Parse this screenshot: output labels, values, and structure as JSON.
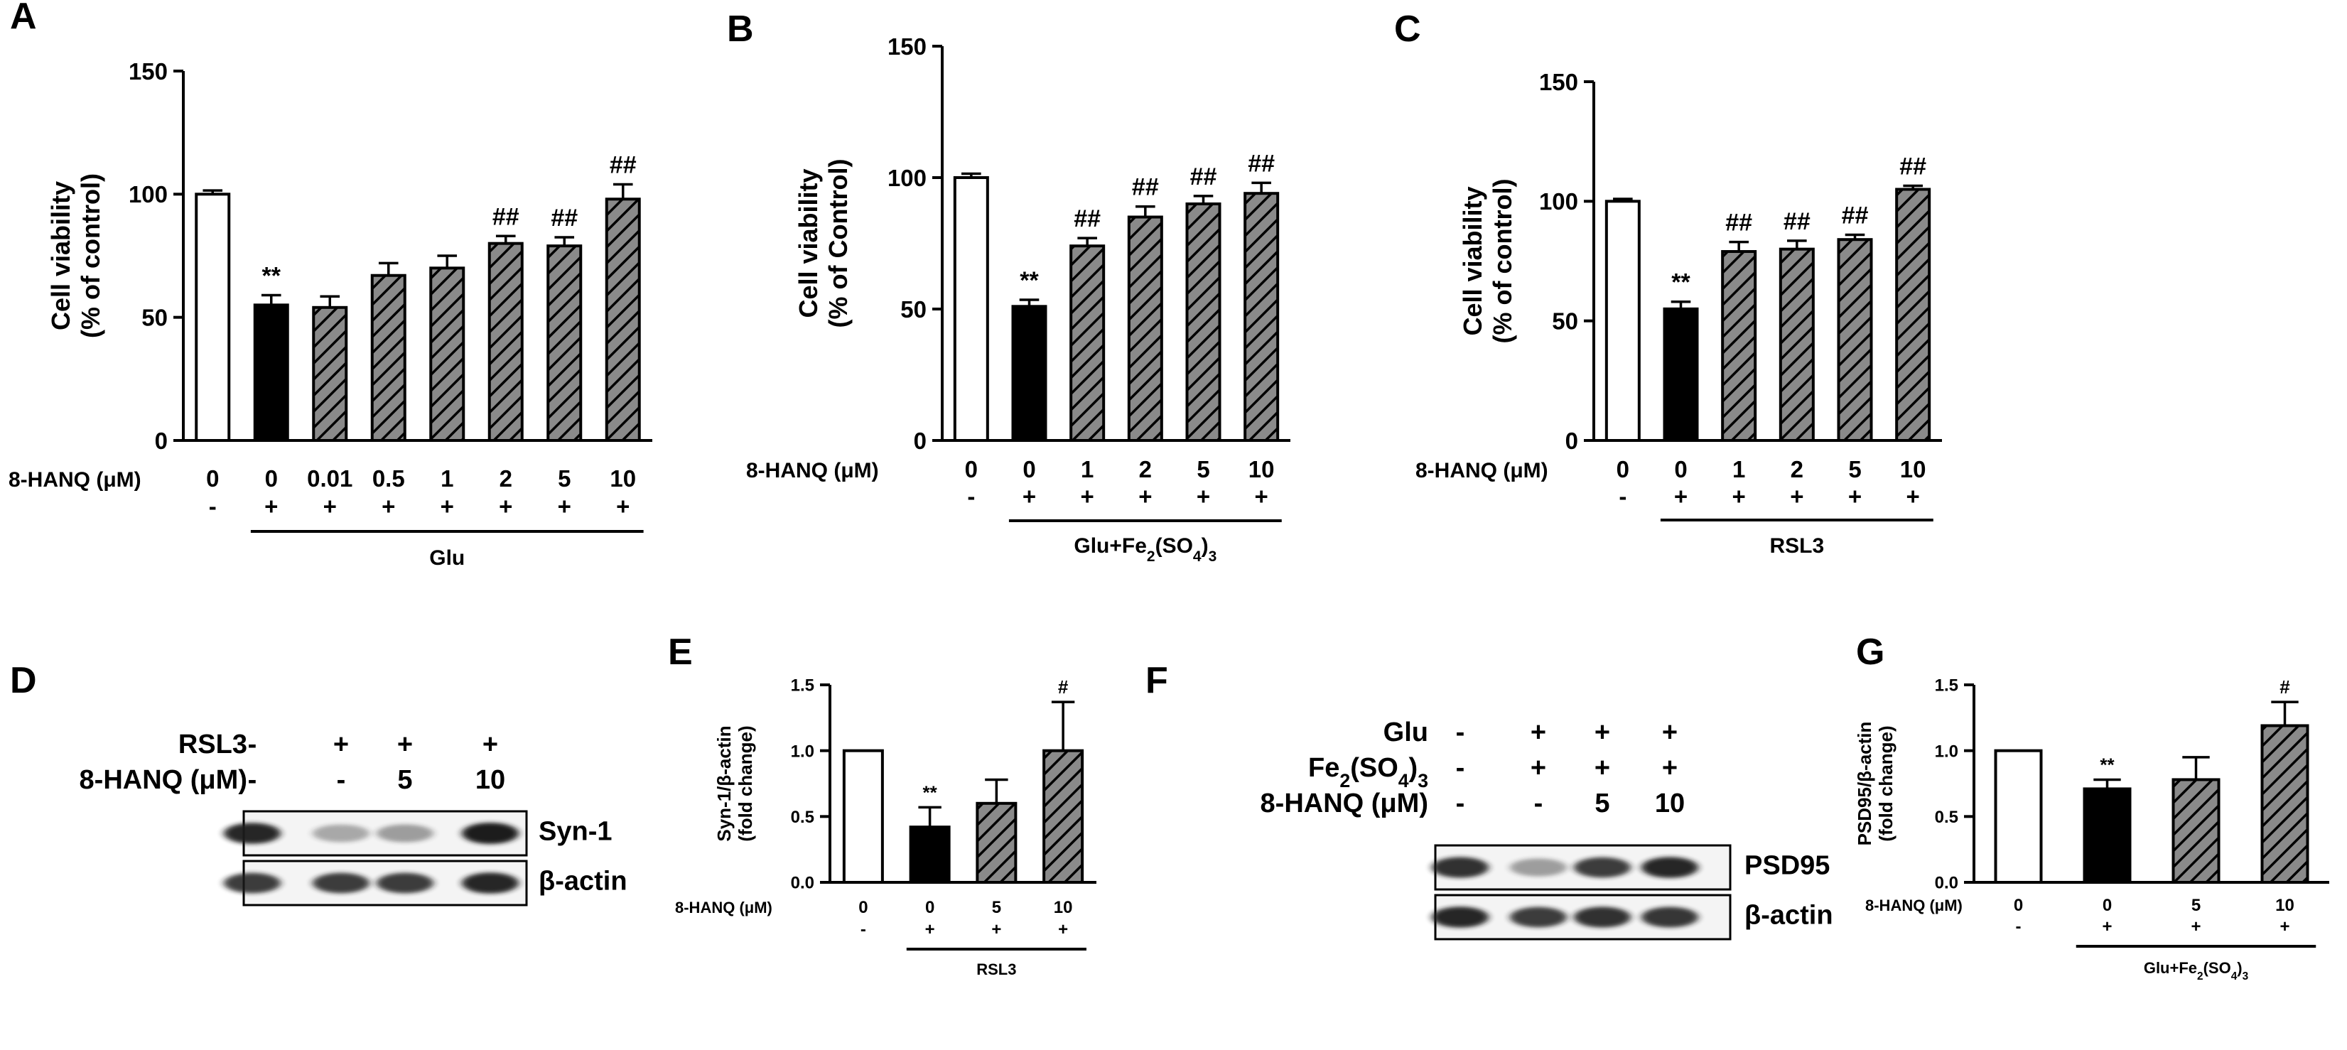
{
  "colors": {
    "ink": "#000000",
    "hatch": "#8a8a8a",
    "band": "#1a1a1a",
    "bg": "#ffffff"
  },
  "chart_data": [
    {
      "id": "A",
      "type": "bar",
      "panel_label": "A",
      "ylabel": [
        "Cell viability",
        "(% of control)"
      ],
      "ylim": [
        0,
        150
      ],
      "yticks": [
        0,
        50,
        100,
        150
      ],
      "row1_label": "8-HANQ (μM)",
      "row1": [
        "0",
        "0",
        "0.01",
        "0.5",
        "1",
        "2",
        "5",
        "10"
      ],
      "row2": [
        "-",
        "+",
        "+",
        "+",
        "+",
        "+",
        "+",
        "+"
      ],
      "treatment": "Glu",
      "treatment_sub": "",
      "values": [
        100,
        55,
        54,
        67,
        70,
        80,
        79,
        98
      ],
      "errors": [
        1.5,
        4,
        4.5,
        5,
        5,
        3,
        3.5,
        6
      ],
      "styles": [
        "white",
        "black",
        "hatch",
        "hatch",
        "hatch",
        "hatch",
        "hatch",
        "hatch"
      ],
      "sig": [
        "",
        "**",
        "",
        "",
        "",
        "##",
        "##",
        "##"
      ]
    },
    {
      "id": "B",
      "type": "bar",
      "panel_label": "B",
      "ylabel": [
        "Cell viability",
        "(% of Control)"
      ],
      "ylim": [
        0,
        150
      ],
      "yticks": [
        0,
        50,
        100,
        150
      ],
      "row1_label": "8-HANQ (μM)",
      "row1": [
        "0",
        "0",
        "1",
        "2",
        "5",
        "10"
      ],
      "row2": [
        "-",
        "+",
        "+",
        "+",
        "+",
        "+"
      ],
      "treatment": "Glu+Fe",
      "treatment_sub": "2(SO4)3",
      "values": [
        100,
        51,
        74,
        85,
        90,
        94
      ],
      "errors": [
        1.5,
        2.5,
        3,
        4,
        3,
        4
      ],
      "styles": [
        "white",
        "black",
        "hatch",
        "hatch",
        "hatch",
        "hatch"
      ],
      "sig": [
        "",
        "**",
        "##",
        "##",
        "##",
        "##"
      ]
    },
    {
      "id": "C",
      "type": "bar",
      "panel_label": "C",
      "ylabel": [
        "Cell viability",
        "(% of control)"
      ],
      "ylim": [
        0,
        150
      ],
      "yticks": [
        0,
        50,
        100,
        150
      ],
      "row1_label": "8-HANQ (μM)",
      "row1": [
        "0",
        "0",
        "1",
        "2",
        "5",
        "10"
      ],
      "row2": [
        "-",
        "+",
        "+",
        "+",
        "+",
        "+"
      ],
      "treatment": "RSL3",
      "treatment_sub": "",
      "values": [
        100,
        55,
        79,
        80,
        84,
        105
      ],
      "errors": [
        1,
        3,
        4,
        3.5,
        2,
        1.5
      ],
      "styles": [
        "white",
        "black",
        "hatch",
        "hatch",
        "hatch",
        "hatch"
      ],
      "sig": [
        "",
        "**",
        "##",
        "##",
        "##",
        "##"
      ]
    },
    {
      "id": "E",
      "type": "bar",
      "panel_label": "E",
      "ylabel": [
        "Syn-1/β-actin",
        "(fold change)"
      ],
      "ylim": [
        0,
        1.5
      ],
      "yticks": [
        "0.0",
        "0.5",
        "1.0",
        "1.5"
      ],
      "row1_label": "8-HANQ (μM)",
      "row1": [
        "0",
        "0",
        "5",
        "10"
      ],
      "row2": [
        "-",
        "+",
        "+",
        "+"
      ],
      "treatment": "RSL3",
      "treatment_sub": "",
      "values": [
        1.0,
        0.42,
        0.6,
        1.0
      ],
      "errors": [
        0,
        0.15,
        0.18,
        0.37
      ],
      "styles": [
        "white",
        "black",
        "hatch",
        "hatch"
      ],
      "sig": [
        "",
        "**",
        "",
        "#"
      ]
    },
    {
      "id": "G",
      "type": "bar",
      "panel_label": "G",
      "ylabel": [
        "PSD95/β-actin",
        "(fold change)"
      ],
      "ylim": [
        0,
        1.5
      ],
      "yticks": [
        "0.0",
        "0.5",
        "1.0",
        "1.5"
      ],
      "row1_label": "8-HANQ (μM)",
      "row1": [
        "0",
        "0",
        "5",
        "10"
      ],
      "row2": [
        "-",
        "+",
        "+",
        "+"
      ],
      "treatment": "Glu+Fe",
      "treatment_sub": "2(SO4)3",
      "values": [
        1.0,
        0.71,
        0.78,
        1.19
      ],
      "errors": [
        0,
        0.07,
        0.17,
        0.18
      ],
      "styles": [
        "white",
        "black",
        "hatch",
        "hatch"
      ],
      "sig": [
        "",
        "**",
        "",
        "#"
      ]
    }
  ],
  "blots": [
    {
      "id": "D",
      "panel_label": "D",
      "rows": [
        {
          "label": "RSL3",
          "values": [
            "-",
            "+",
            "+",
            "+"
          ]
        },
        {
          "label": "8-HANQ (μM)",
          "values": [
            "-",
            "-",
            "5",
            "10"
          ]
        }
      ],
      "bands": [
        {
          "label": "Syn-1",
          "intensity": [
            0.95,
            0.35,
            0.4,
            1.0
          ]
        },
        {
          "label": "β-actin",
          "intensity": [
            0.85,
            0.85,
            0.85,
            0.95
          ]
        }
      ]
    },
    {
      "id": "F",
      "panel_label": "F",
      "rows": [
        {
          "label": "Glu",
          "values": [
            "-",
            "+",
            "+",
            "+"
          ]
        },
        {
          "label": "Fe2(SO4)3",
          "values": [
            "-",
            "+",
            "+",
            "+"
          ]
        },
        {
          "label": "8-HANQ (μM)",
          "values": [
            "-",
            "-",
            "5",
            "10"
          ]
        }
      ],
      "bands": [
        {
          "label": "PSD95",
          "intensity": [
            0.9,
            0.4,
            0.85,
            0.95
          ]
        },
        {
          "label": "β-actin",
          "intensity": [
            0.95,
            0.85,
            0.9,
            0.88
          ]
        }
      ]
    }
  ]
}
